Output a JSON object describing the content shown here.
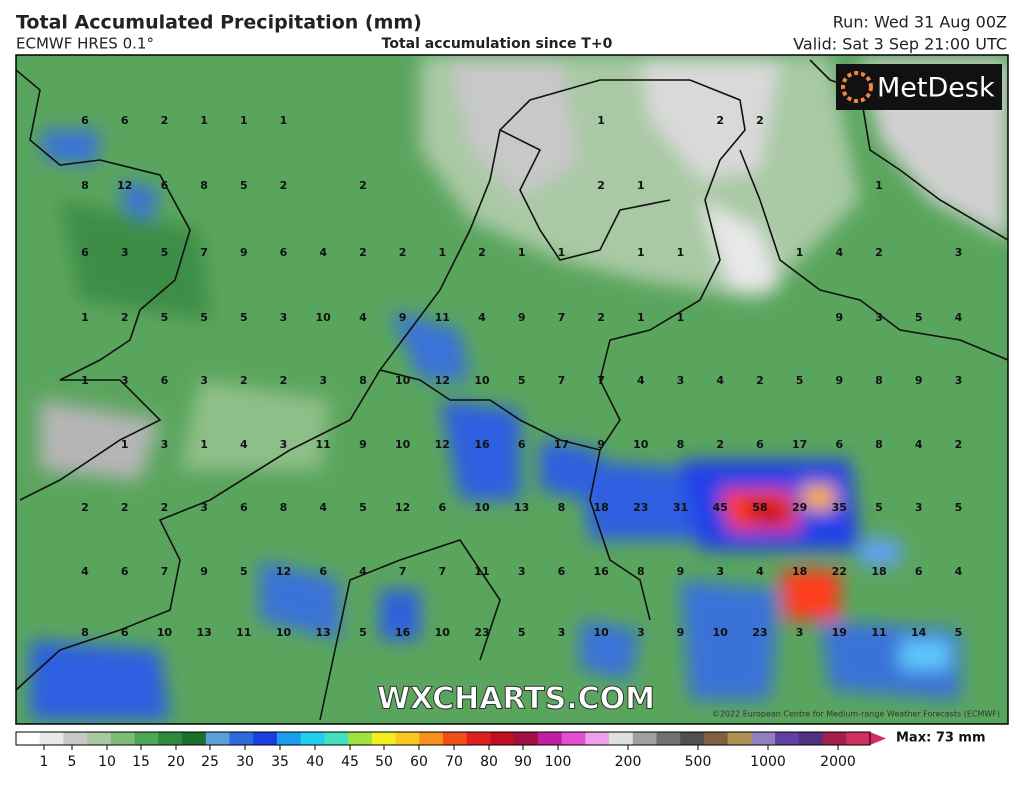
{
  "header": {
    "title": "Total Accumulated Precipitation (mm)",
    "model": "ECMWF HRES 0.1°",
    "subtitle": "Total accumulation since T+0",
    "run": "Run: Wed 31 Aug 00Z",
    "valid": "Valid: Sat 3 Sep 21:00 UTC"
  },
  "logo": "MetDesk",
  "watermark": "WXCHARTS.COM",
  "copyright": "©2022 European Centre for Medium-range Weather Forecasts (ECMWF)",
  "map_labels": [
    [
      6,
      6,
      2,
      1,
      1,
      1,
      null,
      null,
      null,
      null,
      null,
      null,
      null,
      1,
      null,
      null,
      2,
      2,
      null,
      null,
      null,
      null,
      null
    ],
    [
      8,
      12,
      6,
      8,
      5,
      2,
      null,
      2,
      null,
      null,
      null,
      null,
      null,
      2,
      1,
      null,
      null,
      null,
      null,
      null,
      1,
      null,
      null
    ],
    [
      6,
      3,
      5,
      7,
      9,
      6,
      4,
      2,
      2,
      1,
      2,
      1,
      1,
      null,
      1,
      1,
      null,
      null,
      1,
      4,
      2,
      null,
      3
    ],
    [
      1,
      2,
      5,
      5,
      5,
      3,
      10,
      4,
      9,
      11,
      4,
      9,
      7,
      2,
      1,
      1,
      null,
      null,
      null,
      9,
      3,
      5,
      4
    ],
    [
      1,
      3,
      6,
      3,
      2,
      2,
      3,
      8,
      10,
      12,
      10,
      5,
      7,
      7,
      4,
      3,
      4,
      2,
      5,
      9,
      8,
      9,
      3
    ],
    [
      null,
      1,
      3,
      1,
      4,
      3,
      11,
      9,
      10,
      12,
      16,
      6,
      17,
      9,
      10,
      8,
      2,
      6,
      17,
      6,
      8,
      4,
      2
    ],
    [
      2,
      2,
      2,
      3,
      6,
      8,
      4,
      5,
      12,
      6,
      10,
      13,
      8,
      18,
      23,
      31,
      45,
      58,
      29,
      35,
      5,
      3,
      5
    ],
    [
      4,
      6,
      7,
      9,
      5,
      12,
      6,
      4,
      7,
      7,
      11,
      3,
      6,
      16,
      8,
      9,
      3,
      4,
      18,
      22,
      18,
      6,
      4
    ],
    [
      8,
      6,
      10,
      13,
      11,
      10,
      13,
      5,
      16,
      10,
      23,
      5,
      3,
      10,
      3,
      9,
      10,
      23,
      3,
      19,
      11,
      14,
      5
    ]
  ],
  "colorbar": {
    "ticks": [
      1,
      5,
      10,
      15,
      20,
      25,
      30,
      35,
      40,
      45,
      50,
      60,
      70,
      80,
      90,
      100,
      200,
      500,
      1000,
      2000
    ],
    "max_label": "Max: 73 mm"
  }
}
